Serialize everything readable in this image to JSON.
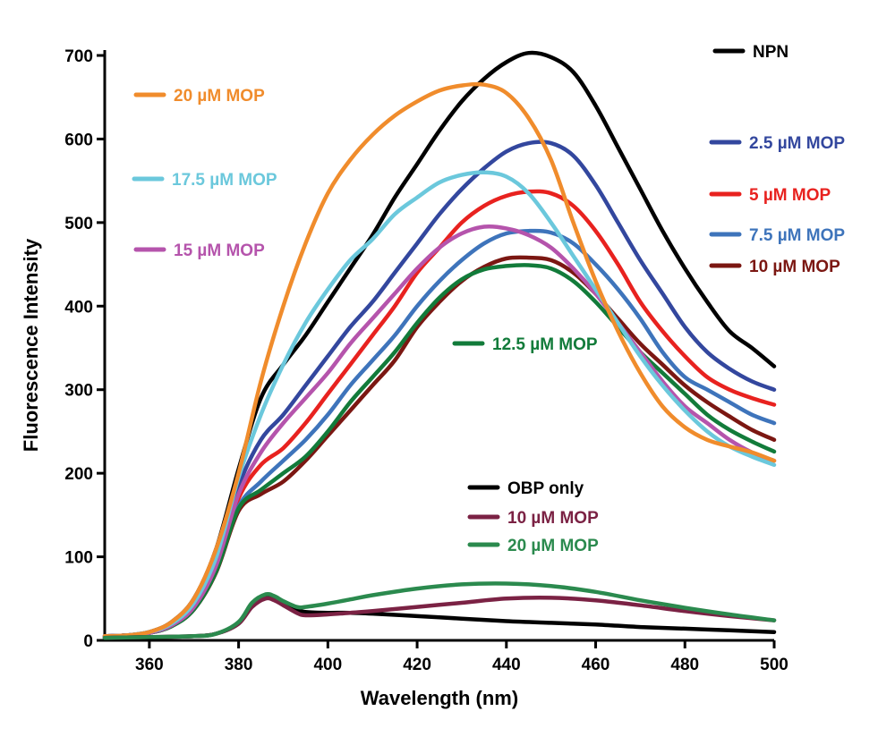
{
  "chart_data": {
    "type": "line",
    "title": "",
    "xlabel": "Wavelength (nm)",
    "ylabel": "Fluorescence Intensity",
    "xlim": [
      350,
      500
    ],
    "ylim": [
      0,
      700
    ],
    "xticks": [
      360,
      380,
      400,
      420,
      440,
      460,
      480,
      500
    ],
    "yticks": [
      0,
      100,
      200,
      300,
      400,
      500,
      600,
      700
    ],
    "series": [
      {
        "name": "NPN",
        "color": "#000000",
        "x": [
          350,
          355,
          360,
          365,
          370,
          375,
          380,
          385,
          390,
          395,
          400,
          405,
          410,
          415,
          420,
          425,
          430,
          435,
          440,
          445,
          450,
          455,
          460,
          465,
          470,
          475,
          480,
          485,
          490,
          495,
          500
        ],
        "y": [
          5,
          6,
          10,
          22,
          50,
          110,
          205,
          290,
          330,
          365,
          405,
          445,
          485,
          530,
          570,
          610,
          645,
          672,
          692,
          703,
          698,
          680,
          640,
          590,
          540,
          490,
          445,
          405,
          370,
          350,
          328
        ]
      },
      {
        "name": "2.5 µM MOP",
        "color": "#33479e",
        "x": [
          350,
          355,
          360,
          365,
          370,
          375,
          380,
          385,
          390,
          395,
          400,
          405,
          410,
          415,
          420,
          425,
          430,
          435,
          440,
          445,
          450,
          455,
          460,
          465,
          470,
          475,
          480,
          485,
          490,
          495,
          500
        ],
        "y": [
          5,
          6,
          10,
          20,
          45,
          100,
          185,
          240,
          270,
          305,
          340,
          375,
          405,
          440,
          475,
          510,
          540,
          565,
          585,
          595,
          595,
          580,
          545,
          500,
          455,
          415,
          375,
          345,
          325,
          310,
          300
        ]
      },
      {
        "name": "5 µM MOP",
        "color": "#e8221f",
        "x": [
          350,
          355,
          360,
          365,
          370,
          375,
          380,
          385,
          390,
          395,
          400,
          405,
          410,
          415,
          420,
          425,
          430,
          435,
          440,
          445,
          450,
          455,
          460,
          465,
          470,
          475,
          480,
          485,
          490,
          495,
          500
        ],
        "y": [
          5,
          6,
          9,
          18,
          40,
          90,
          170,
          210,
          230,
          260,
          295,
          330,
          365,
          400,
          440,
          470,
          500,
          520,
          532,
          537,
          535,
          520,
          490,
          450,
          405,
          370,
          340,
          315,
          300,
          290,
          282
        ]
      },
      {
        "name": "7.5 µM MOP",
        "color": "#3e74bb",
        "x": [
          350,
          355,
          360,
          365,
          370,
          375,
          380,
          385,
          390,
          395,
          400,
          405,
          410,
          415,
          420,
          425,
          430,
          435,
          440,
          445,
          450,
          455,
          460,
          465,
          470,
          475,
          480,
          485,
          490,
          495,
          500
        ],
        "y": [
          5,
          6,
          9,
          17,
          38,
          85,
          160,
          190,
          215,
          240,
          270,
          305,
          335,
          365,
          400,
          430,
          455,
          475,
          487,
          490,
          488,
          475,
          450,
          420,
          385,
          345,
          315,
          300,
          285,
          270,
          260
        ]
      },
      {
        "name": "10 µM MOP",
        "color": "#7b1712",
        "x": [
          350,
          355,
          360,
          365,
          370,
          375,
          380,
          385,
          390,
          395,
          400,
          405,
          410,
          415,
          420,
          425,
          430,
          435,
          440,
          445,
          450,
          455,
          460,
          465,
          470,
          475,
          480,
          485,
          490,
          495,
          500
        ],
        "y": [
          5,
          6,
          9,
          17,
          37,
          82,
          155,
          175,
          190,
          215,
          245,
          275,
          305,
          335,
          375,
          405,
          430,
          447,
          457,
          458,
          455,
          440,
          415,
          385,
          355,
          330,
          305,
          285,
          268,
          252,
          240
        ]
      },
      {
        "name": "12.5 µM MOP",
        "color": "#127b3a",
        "x": [
          350,
          355,
          360,
          365,
          370,
          375,
          380,
          385,
          390,
          395,
          400,
          405,
          410,
          415,
          420,
          425,
          430,
          435,
          440,
          445,
          450,
          455,
          460,
          465,
          470,
          475,
          480,
          485,
          490,
          495,
          500
        ],
        "y": [
          5,
          6,
          9,
          17,
          37,
          83,
          158,
          180,
          200,
          220,
          250,
          285,
          315,
          345,
          380,
          410,
          432,
          444,
          448,
          449,
          445,
          430,
          405,
          375,
          345,
          320,
          295,
          270,
          252,
          238,
          226
        ]
      },
      {
        "name": "15 µM MOP",
        "color": "#b554ac",
        "x": [
          350,
          355,
          360,
          365,
          370,
          375,
          380,
          385,
          390,
          395,
          400,
          405,
          410,
          415,
          420,
          425,
          430,
          435,
          440,
          445,
          450,
          455,
          460,
          465,
          470,
          475,
          480,
          485,
          490,
          495,
          500
        ],
        "y": [
          5,
          6,
          9,
          18,
          40,
          90,
          175,
          225,
          260,
          290,
          320,
          355,
          385,
          415,
          445,
          470,
          487,
          495,
          493,
          485,
          470,
          445,
          415,
          380,
          345,
          310,
          280,
          260,
          240,
          225,
          215
        ]
      },
      {
        "name": "17.5 µM MOP",
        "color": "#6bc8dc",
        "x": [
          350,
          355,
          360,
          365,
          370,
          375,
          380,
          385,
          390,
          395,
          400,
          405,
          410,
          415,
          420,
          425,
          430,
          435,
          440,
          445,
          450,
          455,
          460,
          465,
          470,
          475,
          480,
          485,
          490,
          495,
          500
        ],
        "y": [
          5,
          6,
          10,
          20,
          45,
          100,
          195,
          270,
          330,
          380,
          420,
          455,
          480,
          510,
          530,
          548,
          557,
          560,
          555,
          535,
          500,
          460,
          420,
          380,
          340,
          305,
          275,
          250,
          232,
          220,
          210
        ]
      },
      {
        "name": "20 µM MOP",
        "color": "#f08c2c",
        "x": [
          350,
          355,
          360,
          365,
          370,
          375,
          380,
          385,
          390,
          395,
          400,
          405,
          410,
          415,
          420,
          425,
          430,
          435,
          440,
          445,
          450,
          455,
          460,
          465,
          470,
          475,
          480,
          485,
          490,
          495,
          500
        ],
        "y": [
          5,
          6,
          10,
          22,
          50,
          110,
          200,
          310,
          400,
          475,
          535,
          575,
          605,
          628,
          645,
          658,
          664,
          665,
          655,
          625,
          575,
          500,
          430,
          370,
          320,
          280,
          255,
          240,
          232,
          225,
          215
        ]
      },
      {
        "name": "OBP only",
        "color": "#000000",
        "x": [
          350,
          360,
          370,
          375,
          380,
          383,
          386,
          388,
          390,
          393,
          395,
          400,
          405,
          410,
          420,
          430,
          440,
          450,
          460,
          470,
          480,
          490,
          500
        ],
        "y": [
          3,
          4,
          5,
          8,
          20,
          42,
          52,
          50,
          45,
          37,
          34,
          33,
          33,
          32,
          29,
          26,
          23,
          21,
          19,
          16,
          14,
          12,
          10
        ]
      },
      {
        "name": "10 µM MOP (OBP)",
        "color": "#7b2244",
        "x": [
          350,
          360,
          370,
          375,
          380,
          383,
          386,
          388,
          390,
          393,
          395,
          400,
          405,
          410,
          420,
          430,
          440,
          450,
          460,
          470,
          480,
          490,
          500
        ],
        "y": [
          3,
          4,
          5,
          8,
          20,
          40,
          50,
          48,
          42,
          33,
          30,
          31,
          33,
          35,
          40,
          45,
          50,
          51,
          48,
          42,
          35,
          29,
          24
        ]
      },
      {
        "name": "20 µM MOP (OBP)",
        "color": "#2b8a4e",
        "x": [
          350,
          360,
          370,
          375,
          380,
          383,
          386,
          388,
          390,
          393,
          395,
          400,
          405,
          410,
          420,
          430,
          440,
          450,
          460,
          470,
          480,
          490,
          500
        ],
        "y": [
          3,
          4,
          5,
          8,
          22,
          45,
          55,
          53,
          47,
          40,
          40,
          44,
          49,
          54,
          62,
          67,
          68,
          65,
          58,
          48,
          39,
          31,
          24
        ]
      }
    ],
    "legend": [
      {
        "label": "NPN",
        "color": "#000000"
      },
      {
        "label": "20 µM MOP",
        "color": "#f08c2c"
      },
      {
        "label": "2.5 µM MOP",
        "color": "#33479e"
      },
      {
        "label": "17.5 µM MOP",
        "color": "#6bc8dc"
      },
      {
        "label": "5 µM MOP",
        "color": "#e8221f"
      },
      {
        "label": "7.5 µM MOP",
        "color": "#3e74bb"
      },
      {
        "label": "15 µM MOP",
        "color": "#b554ac"
      },
      {
        "label": "10 µM MOP",
        "color": "#7b1712"
      },
      {
        "label": "12.5 µM MOP",
        "color": "#127b3a"
      },
      {
        "label": "OBP only",
        "color": "#000000"
      },
      {
        "label": "10 µM MOP",
        "color": "#7b2244"
      },
      {
        "label": "20 µM MOP",
        "color": "#2b8a4e"
      }
    ]
  }
}
